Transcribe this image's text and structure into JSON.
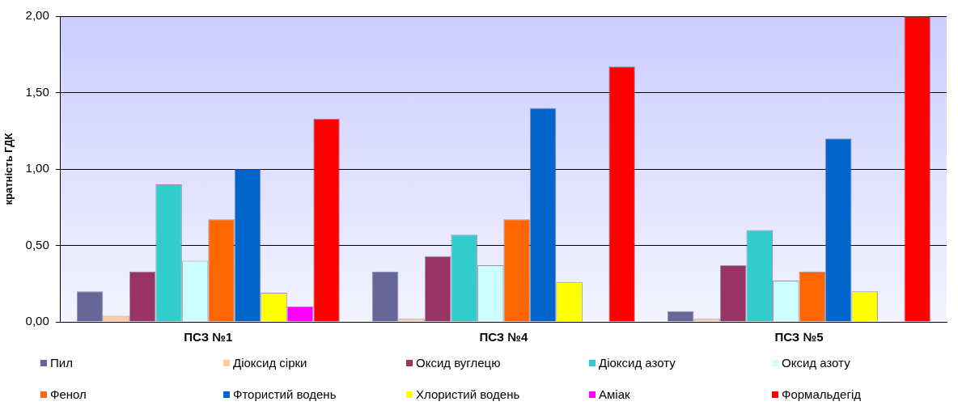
{
  "chart_data": {
    "type": "bar",
    "ylabel": "кратність ГДК",
    "categories": [
      "ПСЗ №1",
      "ПСЗ №4",
      "ПСЗ №5"
    ],
    "ylim": [
      0,
      2
    ],
    "yticks": [
      {
        "value": 0,
        "label": "0,00"
      },
      {
        "value": 0.5,
        "label": "0,50"
      },
      {
        "value": 1,
        "label": "1,00"
      },
      {
        "value": 1.5,
        "label": "1,50"
      },
      {
        "value": 2,
        "label": "2,00"
      }
    ],
    "grid": "y",
    "legend": "bottom",
    "series": [
      {
        "name": "Пил",
        "color": "#666699",
        "values": [
          0.2,
          0.33,
          0.07
        ]
      },
      {
        "name": "Діоксид сірки",
        "color": "#ffcc99",
        "values": [
          0.04,
          0.02,
          0.02
        ]
      },
      {
        "name": "Оксид вуглецю",
        "color": "#993366",
        "values": [
          0.33,
          0.43,
          0.37
        ]
      },
      {
        "name": "Діоксид азоту",
        "color": "#33cccc",
        "values": [
          0.9,
          0.57,
          0.6
        ]
      },
      {
        "name": "Оксид азоту",
        "color": "#ccffff",
        "values": [
          0.4,
          0.37,
          0.27
        ]
      },
      {
        "name": "Фенол",
        "color": "#ff6600",
        "values": [
          0.67,
          0.67,
          0.33
        ]
      },
      {
        "name": "Фтористий водень",
        "color": "#0066cc",
        "values": [
          1.0,
          1.4,
          1.2
        ]
      },
      {
        "name": "Хлористий водень",
        "color": "#ffff00",
        "values": [
          0.19,
          0.26,
          0.2
        ]
      },
      {
        "name": "Аміак",
        "color": "#ff00ff",
        "values": [
          0.1,
          null,
          null
        ]
      },
      {
        "name": "Формальдегід",
        "color": "#ff0000",
        "values": [
          1.33,
          1.67,
          2.0
        ]
      }
    ]
  }
}
